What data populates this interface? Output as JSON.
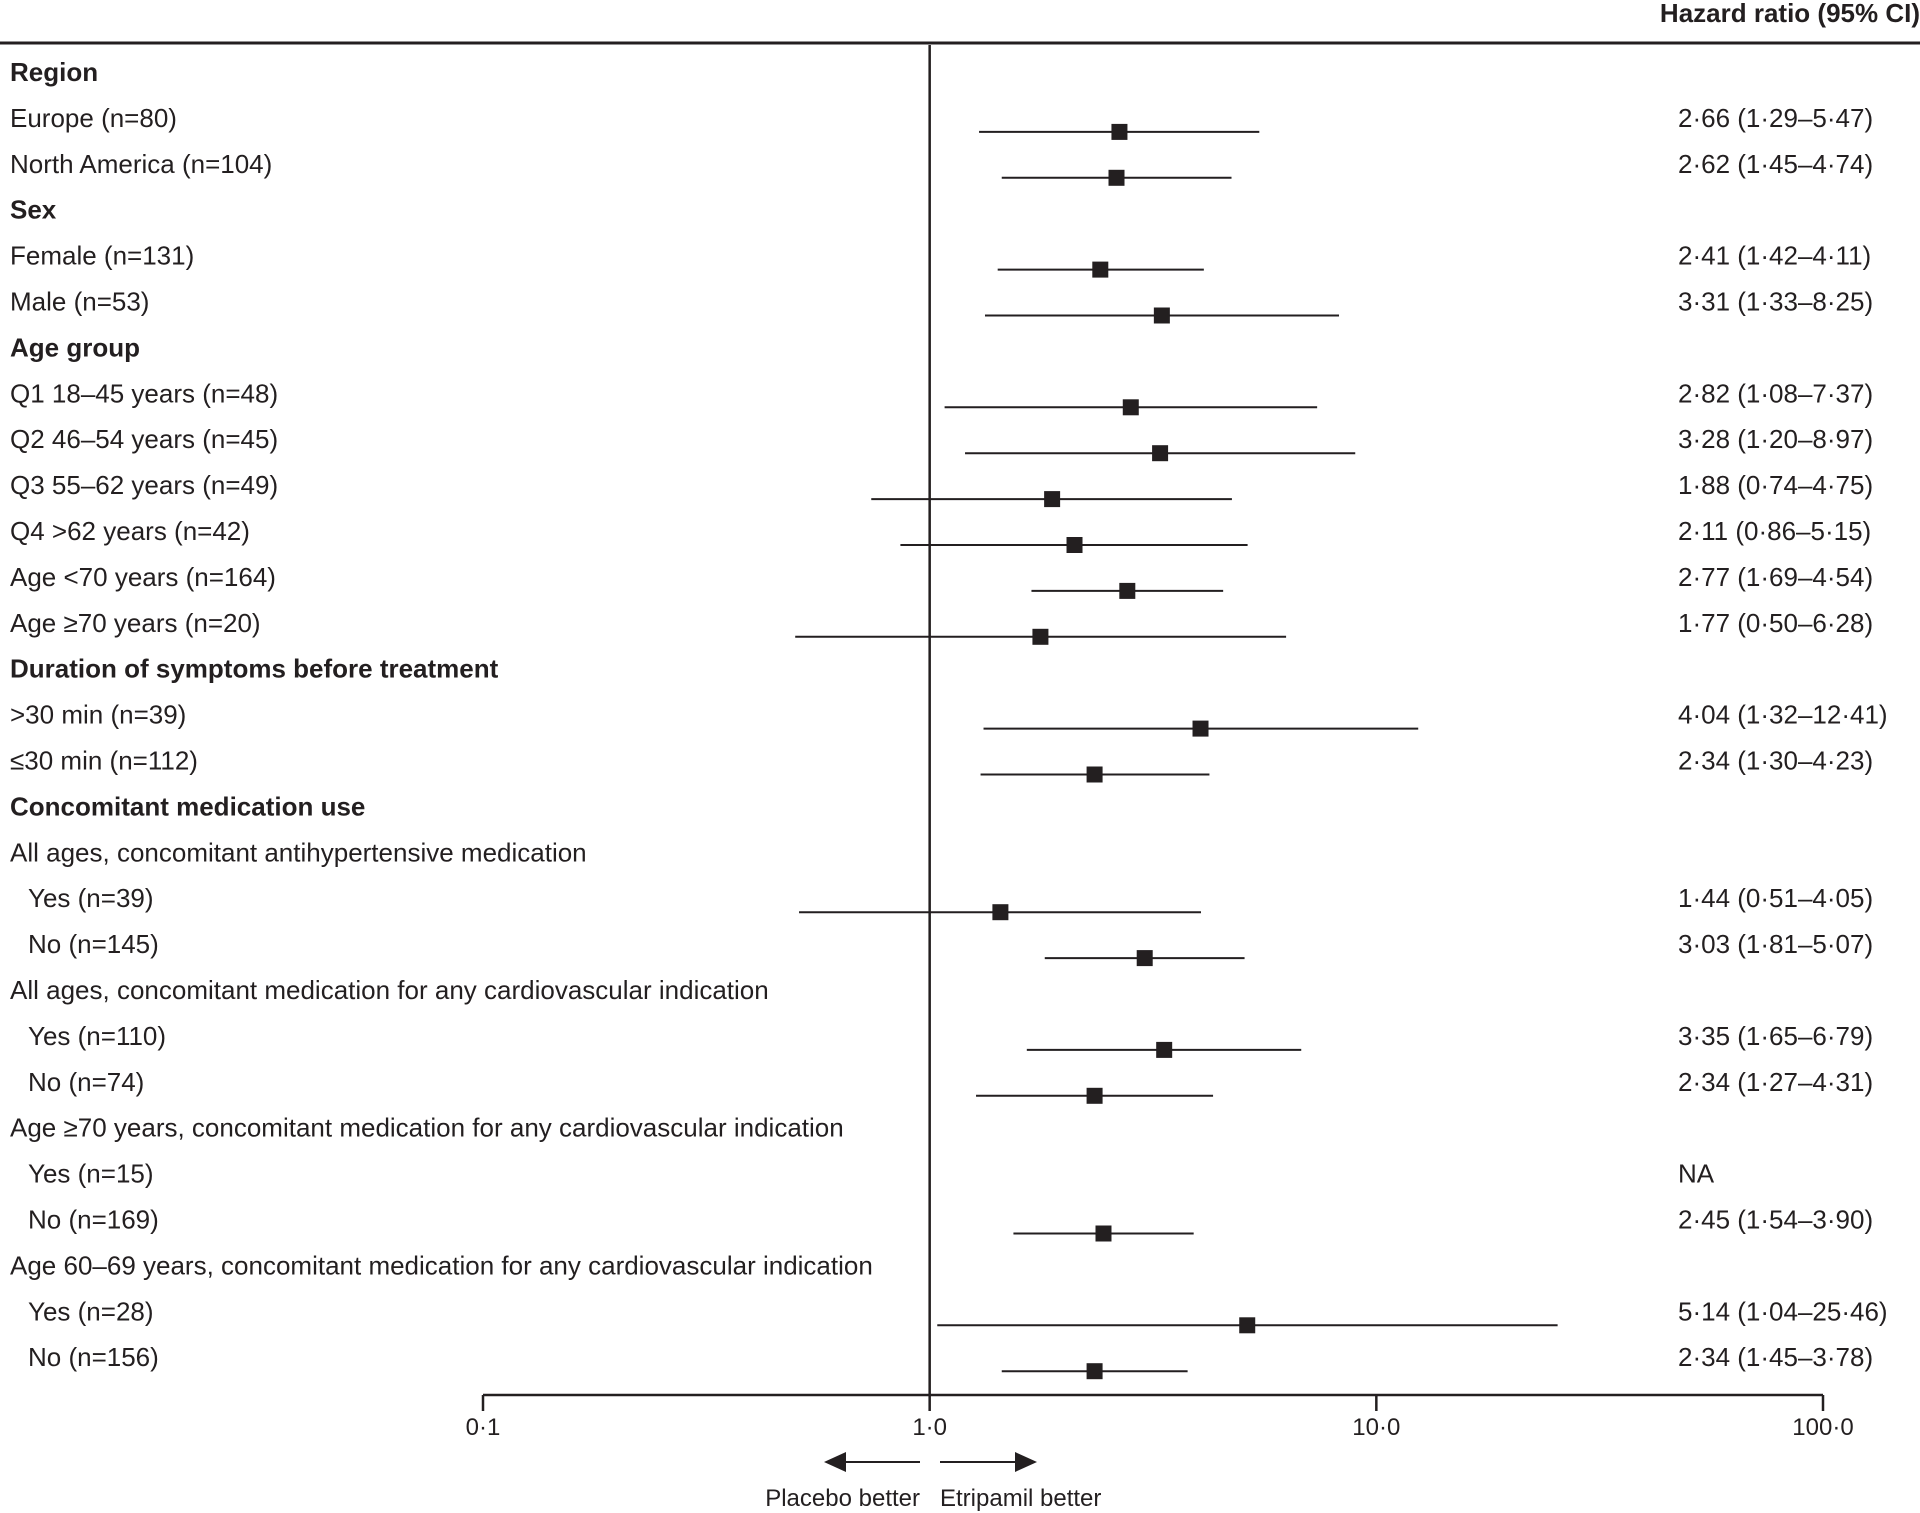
{
  "header": {
    "column_title": "Hazard ratio (95% CI)"
  },
  "chart_data": {
    "type": "forest",
    "xscale": "log",
    "xlim": [
      0.1,
      100.0
    ],
    "reference_line": 1.0,
    "x_ticks": [
      {
        "value": 0.1,
        "label": "0·1"
      },
      {
        "value": 1.0,
        "label": "1·0"
      },
      {
        "value": 10.0,
        "label": "10·0"
      },
      {
        "value": 100.0,
        "label": "100·0"
      }
    ],
    "direction_labels": {
      "left": "Placebo better",
      "right": "Etripamil better"
    },
    "rows": [
      {
        "label": "Region",
        "bold": true,
        "indent": false
      },
      {
        "label": "Europe (n=80)",
        "indent": false,
        "hr": 2.66,
        "lo": 1.29,
        "hi": 5.47,
        "hr_text": "2·66 (1·29–5·47)"
      },
      {
        "label": "North America (n=104)",
        "indent": false,
        "hr": 2.62,
        "lo": 1.45,
        "hi": 4.74,
        "hr_text": "2·62 (1·45–4·74)"
      },
      {
        "label": "Sex",
        "bold": true,
        "indent": false
      },
      {
        "label": "Female (n=131)",
        "indent": false,
        "hr": 2.41,
        "lo": 1.42,
        "hi": 4.11,
        "hr_text": "2·41 (1·42–4·11)"
      },
      {
        "label": "Male (n=53)",
        "indent": false,
        "hr": 3.31,
        "lo": 1.33,
        "hi": 8.25,
        "hr_text": "3·31 (1·33–8·25)"
      },
      {
        "label": "Age group",
        "bold": true,
        "indent": false
      },
      {
        "label": "Q1 18–45 years (n=48)",
        "indent": false,
        "hr": 2.82,
        "lo": 1.08,
        "hi": 7.37,
        "hr_text": "2·82 (1·08–7·37)"
      },
      {
        "label": "Q2 46–54 years (n=45)",
        "indent": false,
        "hr": 3.28,
        "lo": 1.2,
        "hi": 8.97,
        "hr_text": "3·28 (1·20–8·97)"
      },
      {
        "label": "Q3 55–62 years (n=49)",
        "indent": false,
        "hr": 1.88,
        "lo": 0.74,
        "hi": 4.75,
        "hr_text": "1·88 (0·74–4·75)"
      },
      {
        "label": "Q4 >62 years (n=42)",
        "indent": false,
        "hr": 2.11,
        "lo": 0.86,
        "hi": 5.15,
        "hr_text": "2·11 (0·86–5·15)"
      },
      {
        "label": "Age <70 years (n=164)",
        "indent": false,
        "hr": 2.77,
        "lo": 1.69,
        "hi": 4.54,
        "hr_text": "2·77 (1·69–4·54)"
      },
      {
        "label": "Age ≥70 years (n=20)",
        "indent": false,
        "hr": 1.77,
        "lo": 0.5,
        "hi": 6.28,
        "hr_text": "1·77 (0·50–6·28)"
      },
      {
        "label": "Duration of symptoms before treatment",
        "bold": true,
        "indent": false
      },
      {
        "label": ">30 min (n=39)",
        "indent": false,
        "hr": 4.04,
        "lo": 1.32,
        "hi": 12.41,
        "hr_text": "4·04 (1·32–12·41)"
      },
      {
        "label": "≤30 min (n=112)",
        "indent": false,
        "hr": 2.34,
        "lo": 1.3,
        "hi": 4.23,
        "hr_text": "2·34 (1·30–4·23)"
      },
      {
        "label": "Concomitant medication use",
        "bold": true,
        "indent": false
      },
      {
        "label": "All ages, concomitant antihypertensive medication",
        "indent": false
      },
      {
        "label": "Yes (n=39)",
        "indent": true,
        "hr": 1.44,
        "lo": 0.51,
        "hi": 4.05,
        "hr_text": "1·44 (0·51–4·05)"
      },
      {
        "label": "No (n=145)",
        "indent": true,
        "hr": 3.03,
        "lo": 1.81,
        "hi": 5.07,
        "hr_text": "3·03 (1·81–5·07)"
      },
      {
        "label": "All ages, concomitant medication for any cardiovascular indication",
        "indent": false
      },
      {
        "label": "Yes (n=110)",
        "indent": true,
        "hr": 3.35,
        "lo": 1.65,
        "hi": 6.79,
        "hr_text": "3·35 (1·65–6·79)"
      },
      {
        "label": "No (n=74)",
        "indent": true,
        "hr": 2.34,
        "lo": 1.27,
        "hi": 4.31,
        "hr_text": "2·34 (1·27–4·31)"
      },
      {
        "label": "Age ≥70 years, concomitant medication for any cardiovascular indication",
        "indent": false
      },
      {
        "label": "Yes (n=15)",
        "indent": true,
        "hr_text": "NA"
      },
      {
        "label": "No (n=169)",
        "indent": true,
        "hr": 2.45,
        "lo": 1.54,
        "hi": 3.9,
        "hr_text": "2·45 (1·54–3·90)"
      },
      {
        "label": "Age 60–69 years, concomitant medication for any cardiovascular indication",
        "indent": false
      },
      {
        "label": "Yes (n=28)",
        "indent": true,
        "hr": 5.14,
        "lo": 1.04,
        "hi": 25.46,
        "hr_text": "5·14 (1·04–25·46)"
      },
      {
        "label": "No (n=156)",
        "indent": true,
        "hr": 2.34,
        "lo": 1.45,
        "hi": 3.78,
        "hr_text": "2·34 (1·45–3·78)"
      }
    ]
  }
}
